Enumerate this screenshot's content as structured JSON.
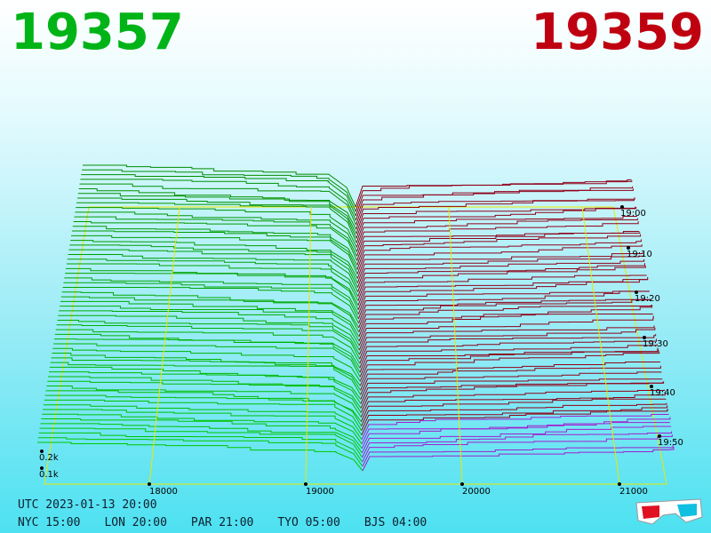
{
  "header": {
    "bid": "19357",
    "ask": "19359"
  },
  "axes": {
    "price_ticks": [
      "18000",
      "19000",
      "20000",
      "21000"
    ],
    "depth_ticks": [
      "0.2k",
      "0.1k"
    ],
    "time_ticks": [
      "19:00",
      "19:10",
      "19:20",
      "19:30",
      "19:40",
      "19:50"
    ]
  },
  "footer": {
    "utc": "UTC 2023-01-13 20:00",
    "clocks": [
      "NYC 15:00",
      "LON 20:00",
      "PAR 21:00",
      "TYO 05:00",
      "BJS 04:00"
    ]
  }
}
